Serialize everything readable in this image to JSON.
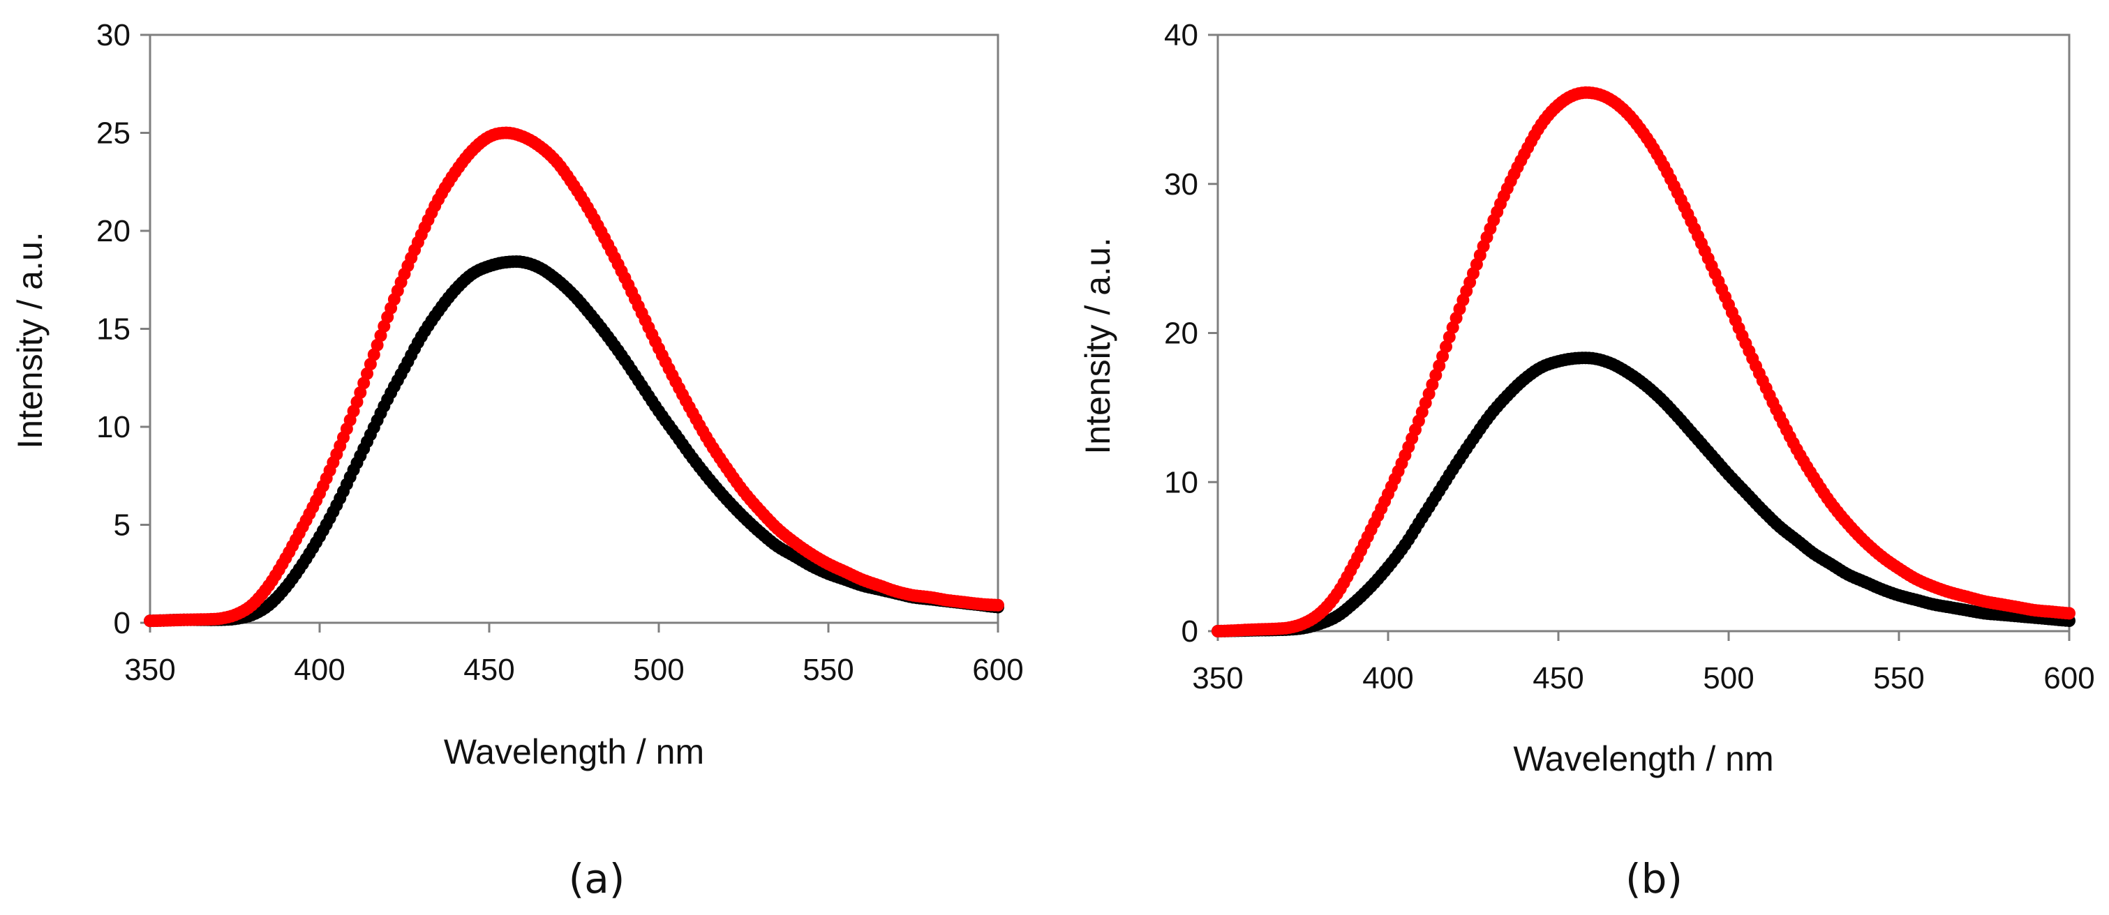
{
  "chart_data": [
    {
      "type": "scatter",
      "panel_label": "(a)",
      "xlabel": "Wavelength / nm",
      "ylabel": "Intensity / a.u.",
      "xlim": [
        350,
        600
      ],
      "ylim": [
        0,
        30
      ],
      "xticks": [
        350,
        400,
        450,
        500,
        550,
        600
      ],
      "yticks": [
        0,
        5,
        10,
        15,
        20,
        25,
        30
      ],
      "grid": false,
      "legend": "none",
      "series": [
        {
          "name": "black",
          "color": "#000000",
          "x": [
            350,
            360,
            370,
            375,
            380,
            385,
            390,
            395,
            400,
            405,
            410,
            415,
            420,
            425,
            430,
            435,
            440,
            445,
            450,
            455,
            460,
            465,
            470,
            475,
            480,
            485,
            490,
            495,
            500,
            505,
            510,
            515,
            520,
            525,
            530,
            535,
            540,
            545,
            550,
            555,
            560,
            565,
            570,
            575,
            580,
            585,
            590,
            595,
            600
          ],
          "y": [
            0.1,
            0.15,
            0.15,
            0.2,
            0.4,
            0.9,
            1.8,
            3.0,
            4.4,
            6.0,
            7.8,
            9.6,
            11.4,
            13.0,
            14.6,
            15.9,
            17.0,
            17.8,
            18.2,
            18.4,
            18.4,
            18.1,
            17.5,
            16.7,
            15.7,
            14.6,
            13.4,
            12.1,
            10.8,
            9.6,
            8.4,
            7.3,
            6.3,
            5.4,
            4.6,
            3.9,
            3.4,
            2.9,
            2.5,
            2.2,
            1.9,
            1.7,
            1.5,
            1.3,
            1.2,
            1.1,
            1.0,
            0.9,
            0.8
          ]
        },
        {
          "name": "red",
          "color": "#ff0000",
          "x": [
            350,
            360,
            370,
            375,
            380,
            385,
            390,
            395,
            400,
            405,
            410,
            415,
            420,
            425,
            430,
            435,
            440,
            445,
            450,
            455,
            460,
            465,
            470,
            475,
            480,
            485,
            490,
            495,
            500,
            505,
            510,
            515,
            520,
            525,
            530,
            535,
            540,
            545,
            550,
            555,
            560,
            565,
            570,
            575,
            580,
            585,
            590,
            595,
            600
          ],
          "y": [
            0.1,
            0.15,
            0.2,
            0.4,
            0.9,
            1.9,
            3.3,
            4.9,
            6.6,
            8.6,
            10.8,
            13.2,
            15.6,
            17.8,
            19.8,
            21.6,
            23.0,
            24.1,
            24.8,
            25.0,
            24.8,
            24.3,
            23.5,
            22.3,
            20.9,
            19.3,
            17.6,
            15.8,
            14.0,
            12.3,
            10.7,
            9.2,
            7.9,
            6.7,
            5.7,
            4.8,
            4.1,
            3.5,
            3.0,
            2.6,
            2.2,
            1.9,
            1.6,
            1.4,
            1.3,
            1.15,
            1.05,
            0.95,
            0.9
          ]
        }
      ]
    },
    {
      "type": "scatter",
      "panel_label": "(b)",
      "xlabel": "Wavelength / nm",
      "ylabel": "Intensity / a.u.",
      "xlim": [
        350,
        600
      ],
      "ylim": [
        0,
        40
      ],
      "xticks": [
        350,
        400,
        450,
        500,
        550,
        600
      ],
      "yticks": [
        0,
        10,
        20,
        30,
        40
      ],
      "grid": false,
      "legend": "none",
      "series": [
        {
          "name": "black",
          "color": "#000000",
          "x": [
            350,
            360,
            370,
            375,
            380,
            385,
            390,
            395,
            400,
            405,
            410,
            415,
            420,
            425,
            430,
            435,
            440,
            445,
            450,
            455,
            460,
            465,
            470,
            475,
            480,
            485,
            490,
            495,
            500,
            505,
            510,
            515,
            520,
            525,
            530,
            535,
            540,
            545,
            550,
            555,
            560,
            565,
            570,
            575,
            580,
            585,
            590,
            595,
            600
          ],
          "y": [
            0.0,
            0.05,
            0.1,
            0.2,
            0.5,
            1.0,
            1.9,
            3.0,
            4.3,
            5.8,
            7.6,
            9.4,
            11.2,
            12.9,
            14.5,
            15.8,
            16.9,
            17.7,
            18.1,
            18.3,
            18.3,
            18.0,
            17.4,
            16.6,
            15.6,
            14.4,
            13.1,
            11.8,
            10.5,
            9.3,
            8.1,
            7.0,
            6.1,
            5.2,
            4.5,
            3.8,
            3.3,
            2.8,
            2.4,
            2.1,
            1.8,
            1.6,
            1.4,
            1.2,
            1.1,
            1.0,
            0.9,
            0.8,
            0.7
          ]
        },
        {
          "name": "red",
          "color": "#ff0000",
          "x": [
            350,
            360,
            370,
            375,
            380,
            385,
            390,
            395,
            400,
            405,
            410,
            415,
            420,
            425,
            430,
            435,
            440,
            445,
            450,
            455,
            460,
            465,
            470,
            475,
            480,
            485,
            490,
            495,
            500,
            505,
            510,
            515,
            520,
            525,
            530,
            535,
            540,
            545,
            550,
            555,
            560,
            565,
            570,
            575,
            580,
            585,
            590,
            595,
            600
          ],
          "y": [
            0.0,
            0.1,
            0.2,
            0.5,
            1.2,
            2.5,
            4.5,
            6.8,
            9.2,
            11.8,
            14.7,
            17.8,
            21.0,
            24.0,
            27.0,
            29.7,
            32.0,
            34.0,
            35.3,
            36.0,
            36.1,
            35.7,
            34.8,
            33.4,
            31.6,
            29.4,
            27.0,
            24.5,
            21.9,
            19.3,
            16.8,
            14.4,
            12.2,
            10.3,
            8.6,
            7.2,
            6.0,
            5.0,
            4.2,
            3.5,
            3.0,
            2.6,
            2.3,
            2.0,
            1.8,
            1.6,
            1.4,
            1.3,
            1.2
          ]
        }
      ]
    }
  ]
}
